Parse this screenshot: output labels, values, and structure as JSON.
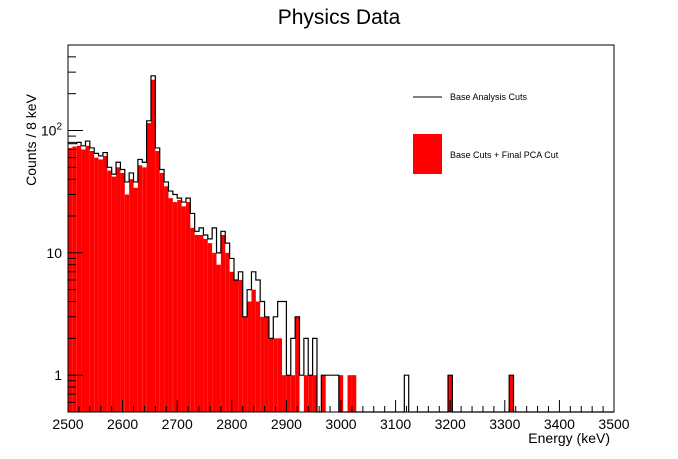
{
  "chart_data": {
    "type": "histogram",
    "title": "Physics Data",
    "xlabel": "Energy (keV)",
    "ylabel": "Counts / 8 keV",
    "x_range": [
      2500,
      3500
    ],
    "y_range": [
      0.5,
      500
    ],
    "y_scale": "log",
    "bin_width": 8,
    "x_tick_labels": [
      "2500",
      "2600",
      "2700",
      "2800",
      "2900",
      "3000",
      "3100",
      "3200",
      "3300",
      "3400",
      "3500"
    ],
    "y_tick_labels": [
      "1",
      "10",
      "10^2"
    ],
    "legend_position": "top-right",
    "series": [
      {
        "name": "Base Analysis Cuts",
        "style": "step-outline",
        "color": "#000000",
        "values": [
          78,
          78,
          80,
          75,
          82,
          72,
          65,
          62,
          66,
          50,
          44,
          55,
          48,
          38,
          45,
          38,
          58,
          55,
          120,
          280,
          72,
          48,
          38,
          32,
          30,
          28,
          26,
          28,
          21,
          15,
          16,
          14,
          13,
          16,
          10,
          15,
          12,
          9,
          6,
          7,
          3,
          5,
          7,
          6,
          4,
          3,
          2,
          3,
          4,
          4,
          1,
          2,
          3,
          1,
          2,
          1,
          2,
          0,
          1,
          1,
          1,
          1,
          0,
          0,
          0,
          0,
          0,
          0,
          0,
          0,
          0,
          0,
          0,
          0,
          0,
          0,
          0,
          1,
          0,
          0,
          0,
          0,
          0,
          0,
          0,
          0,
          0,
          1,
          0,
          0,
          0,
          0,
          0,
          0,
          0,
          0,
          0,
          0,
          0,
          0,
          0,
          1,
          0,
          0,
          0,
          0,
          0,
          0,
          0,
          0,
          0,
          0,
          0,
          0,
          0,
          0,
          0,
          0,
          0,
          0,
          0,
          0,
          0,
          0,
          0
        ]
      },
      {
        "name": "Base Cuts + Final PCA Cut",
        "style": "filled",
        "color": "#ff0000",
        "values": [
          72,
          74,
          75,
          70,
          75,
          68,
          60,
          58,
          62,
          47,
          42,
          50,
          45,
          30,
          40,
          34,
          52,
          50,
          115,
          260,
          68,
          45,
          35,
          28,
          26,
          27,
          24,
          26,
          16,
          14,
          14,
          13,
          12,
          10,
          8,
          14,
          10,
          7,
          6,
          6,
          3,
          4,
          5,
          4,
          3,
          3,
          2,
          2,
          2,
          1,
          1,
          1,
          3,
          0,
          1,
          1,
          1,
          0,
          1,
          0,
          0,
          0,
          1,
          0,
          1,
          1,
          0,
          0,
          0,
          0,
          0,
          0,
          0,
          0,
          0,
          0,
          0,
          0,
          0,
          0,
          0,
          0,
          0,
          0,
          0,
          0,
          0,
          1,
          0,
          0,
          0,
          0,
          0,
          0,
          0,
          0,
          0,
          0,
          0,
          0,
          0,
          1,
          0,
          0,
          0,
          0,
          0,
          0,
          0,
          0,
          0,
          0,
          0,
          0,
          0,
          0,
          0,
          0,
          0,
          0,
          0,
          0,
          0,
          0,
          0
        ]
      }
    ]
  }
}
